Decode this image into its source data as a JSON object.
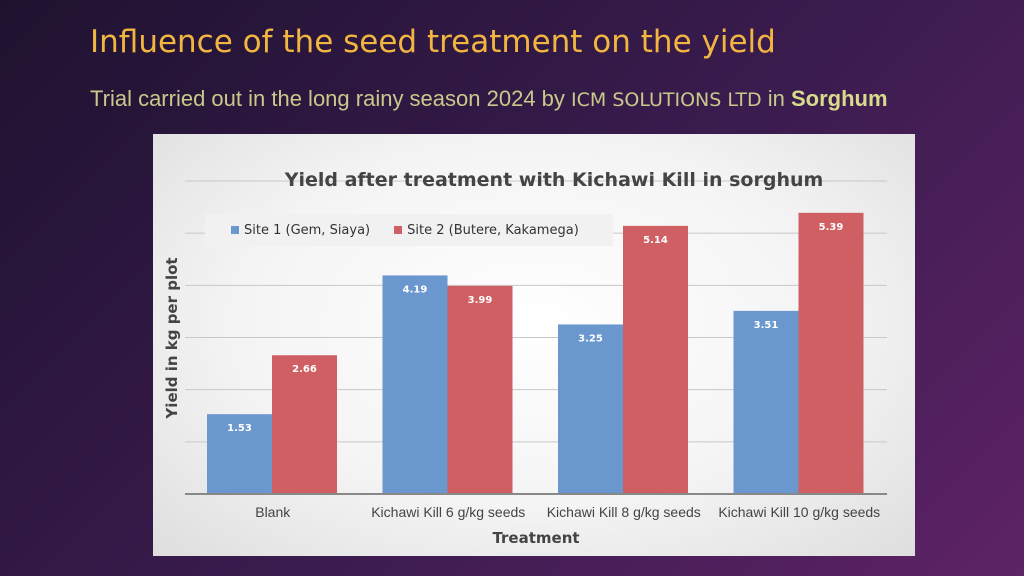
{
  "slide": {
    "title": "Influence of the seed treatment on the yield",
    "subtitle_prefix": "Trial carried out in the long rainy season 2024 by",
    "organization": "ICM SOLUTIONS LTD",
    "subtitle_in": "in",
    "crop": "Sorghum"
  },
  "colors": {
    "title": "#f2b640",
    "site1": "#6b97cf",
    "site2": "#cf5f62"
  },
  "chart_data": {
    "type": "bar",
    "title": "Yield after treatment with Kichawi Kill in sorghum",
    "xlabel": "Treatment",
    "ylabel": "Yield in kg per plot",
    "categories": [
      "Blank",
      "Kichawi Kill 6 g/kg seeds",
      "Kichawi Kill 8 g/kg seeds",
      "Kichawi Kill 10 g/kg seeds"
    ],
    "series": [
      {
        "name": "Site 1 (Gem, Siaya)",
        "values": [
          1.53,
          4.19,
          3.25,
          3.51
        ]
      },
      {
        "name": "Site 2 (Butere, Kakamega)",
        "values": [
          2.66,
          3.99,
          5.14,
          5.39
        ]
      }
    ],
    "ylim": [
      0,
      6
    ],
    "grid": true,
    "legend_position": "top-left"
  }
}
